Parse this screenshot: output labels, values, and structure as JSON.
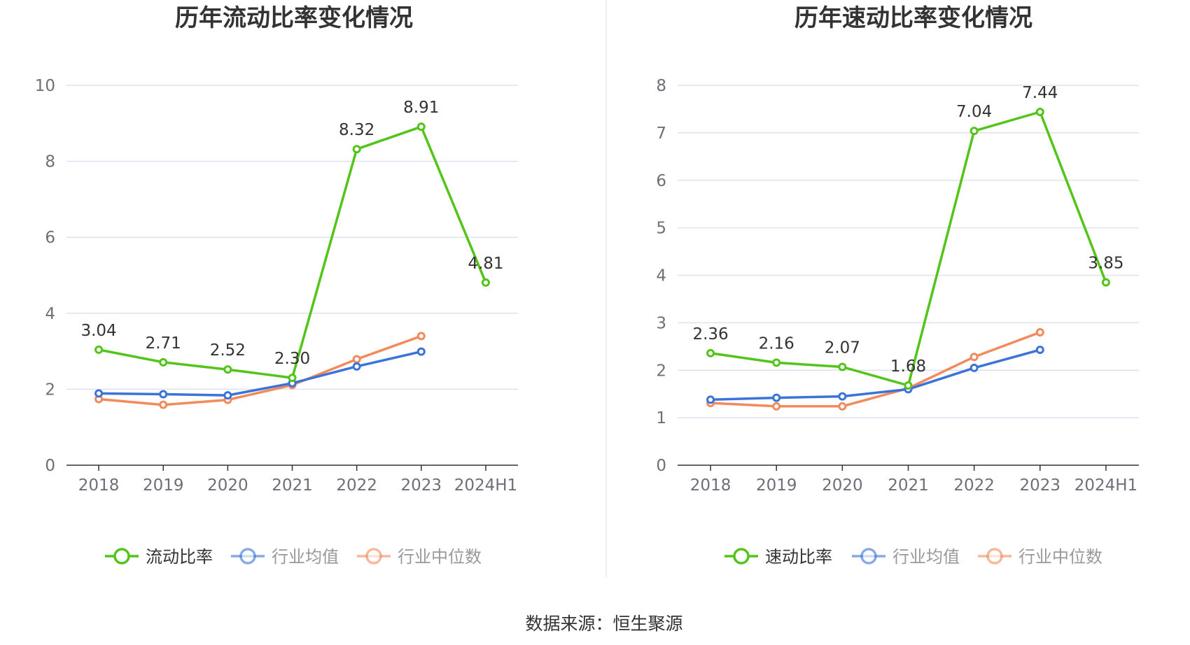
{
  "source_label": "数据来源：恒生聚源",
  "colors": {
    "main": "#52c41a",
    "avg": "#3b73d9",
    "median": "#f28a5c",
    "grid": "#dde3ee",
    "axis": "#333333"
  },
  "chart_data": [
    {
      "type": "line",
      "title": "历年流动比率变化情况",
      "categories": [
        "2018",
        "2019",
        "2020",
        "2021",
        "2022",
        "2023",
        "2024H1"
      ],
      "ylim": [
        0,
        10
      ],
      "yticks": [
        0,
        2,
        4,
        6,
        8,
        10
      ],
      "grid": true,
      "legend_position": "bottom",
      "series": [
        {
          "name": "流动比率",
          "values": [
            3.04,
            2.71,
            2.52,
            2.3,
            8.32,
            8.91,
            4.81
          ],
          "labels": [
            "3.04",
            "2.71",
            "2.52",
            "2.30",
            "8.32",
            "8.91",
            "4.81"
          ],
          "color": "#52c41a",
          "legend_active": true
        },
        {
          "name": "行业均值",
          "values": [
            1.89,
            1.87,
            1.84,
            2.16,
            2.6,
            2.99,
            null
          ],
          "color": "#3b73d9",
          "legend_active": false
        },
        {
          "name": "行业中位数",
          "values": [
            1.74,
            1.59,
            1.72,
            2.11,
            2.79,
            3.4,
            null
          ],
          "color": "#f28a5c",
          "legend_active": false
        }
      ]
    },
    {
      "type": "line",
      "title": "历年速动比率变化情况",
      "categories": [
        "2018",
        "2019",
        "2020",
        "2021",
        "2022",
        "2023",
        "2024H1"
      ],
      "ylim": [
        0,
        8
      ],
      "yticks": [
        0,
        1,
        2,
        3,
        4,
        5,
        6,
        7,
        8
      ],
      "grid": true,
      "legend_position": "bottom",
      "series": [
        {
          "name": "速动比率",
          "values": [
            2.36,
            2.16,
            2.07,
            1.68,
            7.04,
            7.44,
            3.85
          ],
          "labels": [
            "2.36",
            "2.16",
            "2.07",
            "1.68",
            "7.04",
            "7.44",
            "3.85"
          ],
          "color": "#52c41a",
          "legend_active": true
        },
        {
          "name": "行业均值",
          "values": [
            1.38,
            1.42,
            1.45,
            1.6,
            2.05,
            2.43,
            null
          ],
          "color": "#3b73d9",
          "legend_active": false
        },
        {
          "name": "行业中位数",
          "values": [
            1.31,
            1.24,
            1.24,
            1.62,
            2.28,
            2.8,
            null
          ],
          "color": "#f28a5c",
          "legend_active": false
        }
      ]
    }
  ]
}
